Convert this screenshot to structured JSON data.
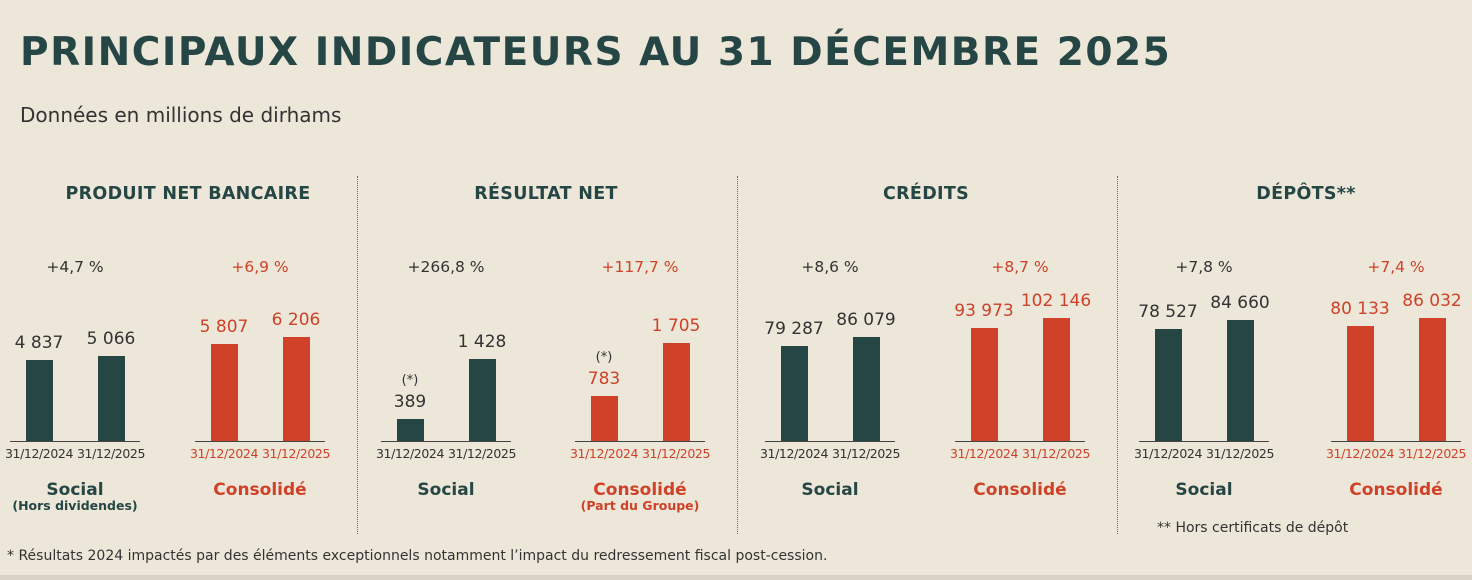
{
  "header": {
    "title": "PRINCIPAUX INDICATEURS AU 31 DÉCEMBRE 2025",
    "subtitle": "Données en millions de dirhams"
  },
  "colors": {
    "social": "#264646",
    "consolide": "#cf4128",
    "background": "#ece7d8"
  },
  "notes": {
    "star": "* Résultats 2024 impactés par des éléments exceptionnels notamment l’impact du redressement fiscal post-cession.",
    "deposits": "** Hors certificats de dépôt"
  },
  "chart_data": [
    {
      "type": "bar",
      "title": "PRODUIT NET BANCAIRE",
      "groups": [
        {
          "name": "Social",
          "subtitle": "(Hors dividendes)",
          "growth": "+4,7 %",
          "categories": [
            "31/12/2024",
            "31/12/2025"
          ],
          "values": [
            4837,
            5066
          ],
          "labels": [
            "4 837",
            "5 066"
          ],
          "markers": [
            "",
            ""
          ]
        },
        {
          "name": "Consolidé",
          "subtitle": "",
          "growth": "+6,9 %",
          "categories": [
            "31/12/2024",
            "31/12/2025"
          ],
          "values": [
            5807,
            6206
          ],
          "labels": [
            "5 807",
            "6 206"
          ],
          "markers": [
            "",
            ""
          ]
        }
      ]
    },
    {
      "type": "bar",
      "title": "RÉSULTAT NET",
      "groups": [
        {
          "name": "Social",
          "subtitle": "",
          "growth": "+266,8 %",
          "categories": [
            "31/12/2024",
            "31/12/2025"
          ],
          "values": [
            389,
            1428
          ],
          "labels": [
            "389",
            "1 428"
          ],
          "markers": [
            "(*)",
            ""
          ]
        },
        {
          "name": "Consolidé",
          "subtitle": "(Part du Groupe)",
          "growth": "+117,7 %",
          "categories": [
            "31/12/2024",
            "31/12/2025"
          ],
          "values": [
            783,
            1705
          ],
          "labels": [
            "783",
            "1 705"
          ],
          "markers": [
            "(*)",
            ""
          ]
        }
      ]
    },
    {
      "type": "bar",
      "title": "CRÉDITS",
      "groups": [
        {
          "name": "Social",
          "subtitle": "",
          "growth": "+8,6 %",
          "categories": [
            "31/12/2024",
            "31/12/2025"
          ],
          "values": [
            79287,
            86079
          ],
          "labels": [
            "79 287",
            "86 079"
          ],
          "markers": [
            "",
            ""
          ]
        },
        {
          "name": "Consolidé",
          "subtitle": "",
          "growth": "+8,7 %",
          "categories": [
            "31/12/2024",
            "31/12/2025"
          ],
          "values": [
            93973,
            102146
          ],
          "labels": [
            "93 973",
            "102 146"
          ],
          "markers": [
            "",
            ""
          ]
        }
      ]
    },
    {
      "type": "bar",
      "title": "DÉPÔTS**",
      "groups": [
        {
          "name": "Social",
          "subtitle": "",
          "growth": "+7,8 %",
          "categories": [
            "31/12/2024",
            "31/12/2025"
          ],
          "values": [
            78527,
            84660
          ],
          "labels": [
            "78 527",
            "84 660"
          ],
          "markers": [
            "",
            ""
          ]
        },
        {
          "name": "Consolidé",
          "subtitle": "",
          "growth": "+7,4 %",
          "categories": [
            "31/12/2024",
            "31/12/2025"
          ],
          "values": [
            80133,
            86032
          ],
          "labels": [
            "80 133",
            "86 032"
          ],
          "markers": [
            "",
            ""
          ]
        }
      ]
    }
  ]
}
